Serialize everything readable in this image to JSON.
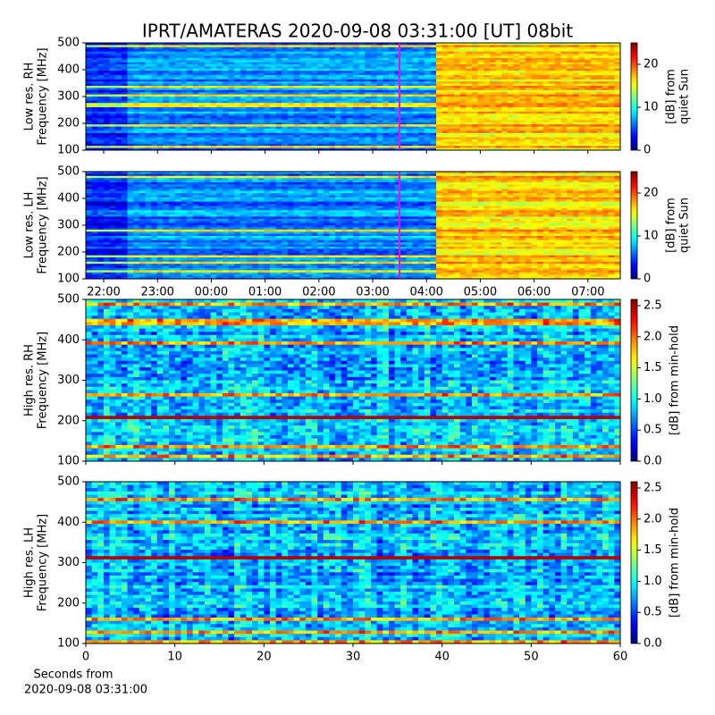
{
  "chart_data": [
    {
      "type": "heatmap",
      "title": "IPRT/AMATERAS 2020-09-08 03:31:00 [UT]   08bit",
      "ylabel": [
        "Low res. RH",
        "Frequency [MHz]"
      ],
      "ylim": [
        100,
        500
      ],
      "yticks": [
        100,
        200,
        300,
        400,
        500
      ],
      "clim": [
        0,
        25
      ],
      "cticks": [
        0,
        10,
        20
      ],
      "clabel": [
        "[dB] from",
        "quiet Sun"
      ]
    },
    {
      "type": "heatmap",
      "ylabel": [
        "Low res. LH",
        "Frequency [MHz]"
      ],
      "ylim": [
        100,
        500
      ],
      "yticks": [
        100,
        200,
        300,
        400,
        500
      ],
      "clim": [
        0,
        25
      ],
      "cticks": [
        0,
        10,
        20
      ],
      "clabel": [
        "[dB] from",
        "quiet Sun"
      ],
      "categories": [
        "22:00",
        "23:00",
        "00:00",
        "01:00",
        "02:00",
        "03:00",
        "04:00",
        "05:00",
        "06:00",
        "07:00"
      ]
    },
    {
      "type": "heatmap",
      "ylabel": [
        "High res. RH",
        "Frequency [MHz]"
      ],
      "ylim": [
        100,
        500
      ],
      "yticks": [
        100,
        200,
        300,
        400,
        500
      ],
      "clim": [
        0,
        2.6
      ],
      "cticks": [
        {
          "value": 0,
          "label": "0.0"
        },
        {
          "value": 0.5,
          "label": "0.5"
        },
        {
          "value": 1,
          "label": "1.0"
        },
        {
          "value": 1.5,
          "label": "1.5"
        },
        {
          "value": 2,
          "label": "2.0"
        },
        {
          "value": 2.5,
          "label": "2.5"
        }
      ],
      "clabel": [
        "[dB] from min-hold"
      ]
    },
    {
      "type": "heatmap",
      "ylabel": [
        "High res. LH",
        "Frequency [MHz]"
      ],
      "ylim": [
        100,
        500
      ],
      "yticks": [
        100,
        200,
        300,
        400,
        500
      ],
      "clim": [
        0,
        2.6
      ],
      "cticks": [
        {
          "value": 0,
          "label": "0.0"
        },
        {
          "value": 0.5,
          "label": "0.5"
        },
        {
          "value": 1,
          "label": "1.0"
        },
        {
          "value": 1.5,
          "label": "1.5"
        },
        {
          "value": 2,
          "label": "2.0"
        },
        {
          "value": 2.5,
          "label": "2.5"
        }
      ],
      "clabel": [
        "[dB] from min-hold"
      ],
      "xlim": [
        0,
        60
      ],
      "xticks": [
        0,
        10,
        20,
        30,
        40,
        50,
        60
      ],
      "xlabel": [
        "Seconds from",
        "2020-09-08 03:31:00"
      ]
    }
  ]
}
